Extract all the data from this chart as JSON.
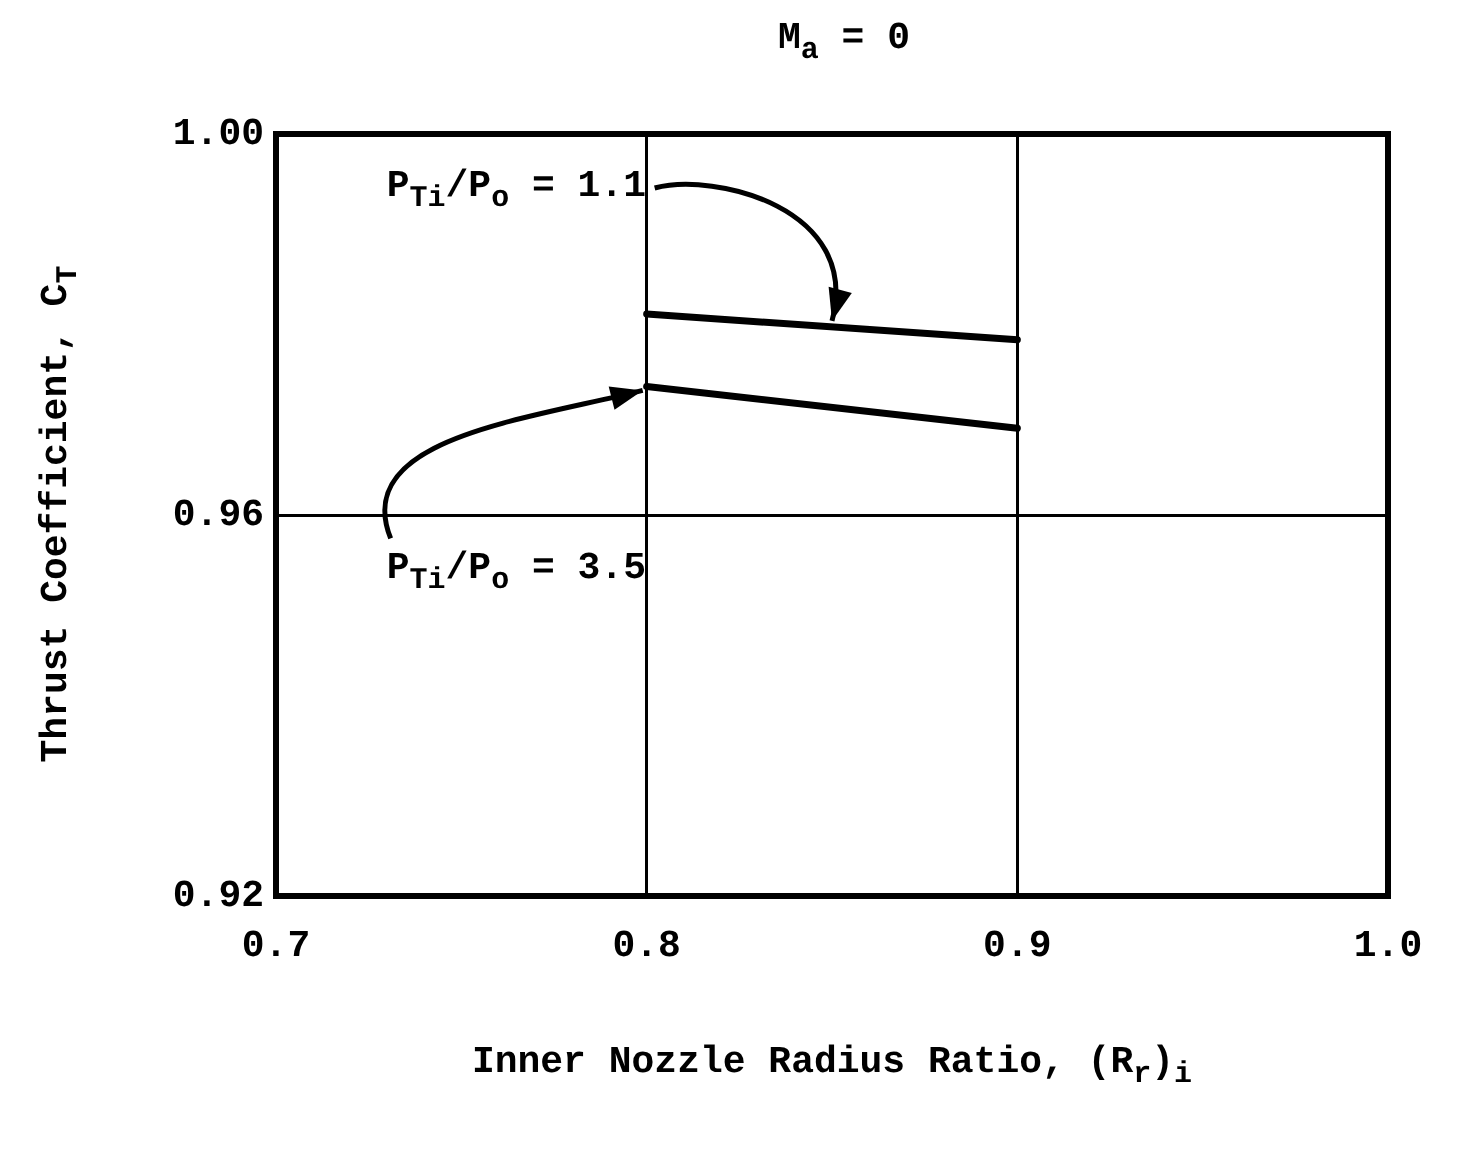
{
  "chart_data": {
    "type": "line",
    "title": "M$_{a}$ = 0",
    "xlabel": "Inner Nozzle Radius Ratio, (R$_{r}$)$_{i}$",
    "ylabel": "Thrust Coefficient, C$_{T}$",
    "x": [
      0.8,
      0.9
    ],
    "series": [
      {
        "name": "P$_{Ti}$/P$_{o}$ = 1.1",
        "color": "#000000",
        "values": [
          0.9811,
          0.9784
        ]
      },
      {
        "name": "P$_{Ti}$/P$_{o}$ = 3.5",
        "color": "#000000",
        "values": [
          0.9735,
          0.9691
        ]
      }
    ],
    "xlim": [
      0.7,
      1.0
    ],
    "xticks": [
      {
        "value": 0.7,
        "label": "0.7"
      },
      {
        "value": 0.8,
        "label": "0.8"
      },
      {
        "value": 0.9,
        "label": "0.9"
      },
      {
        "value": 1.0,
        "label": "1.0"
      }
    ],
    "ylim": [
      0.92,
      1.0
    ],
    "yticks": [
      {
        "value": 0.92,
        "label": "0.92"
      },
      {
        "value": 0.96,
        "label": "0.96"
      },
      {
        "value": 1.0,
        "label": "1.00"
      }
    ],
    "grid": true,
    "legend": false,
    "marker": "none",
    "line_style": "solid"
  }
}
